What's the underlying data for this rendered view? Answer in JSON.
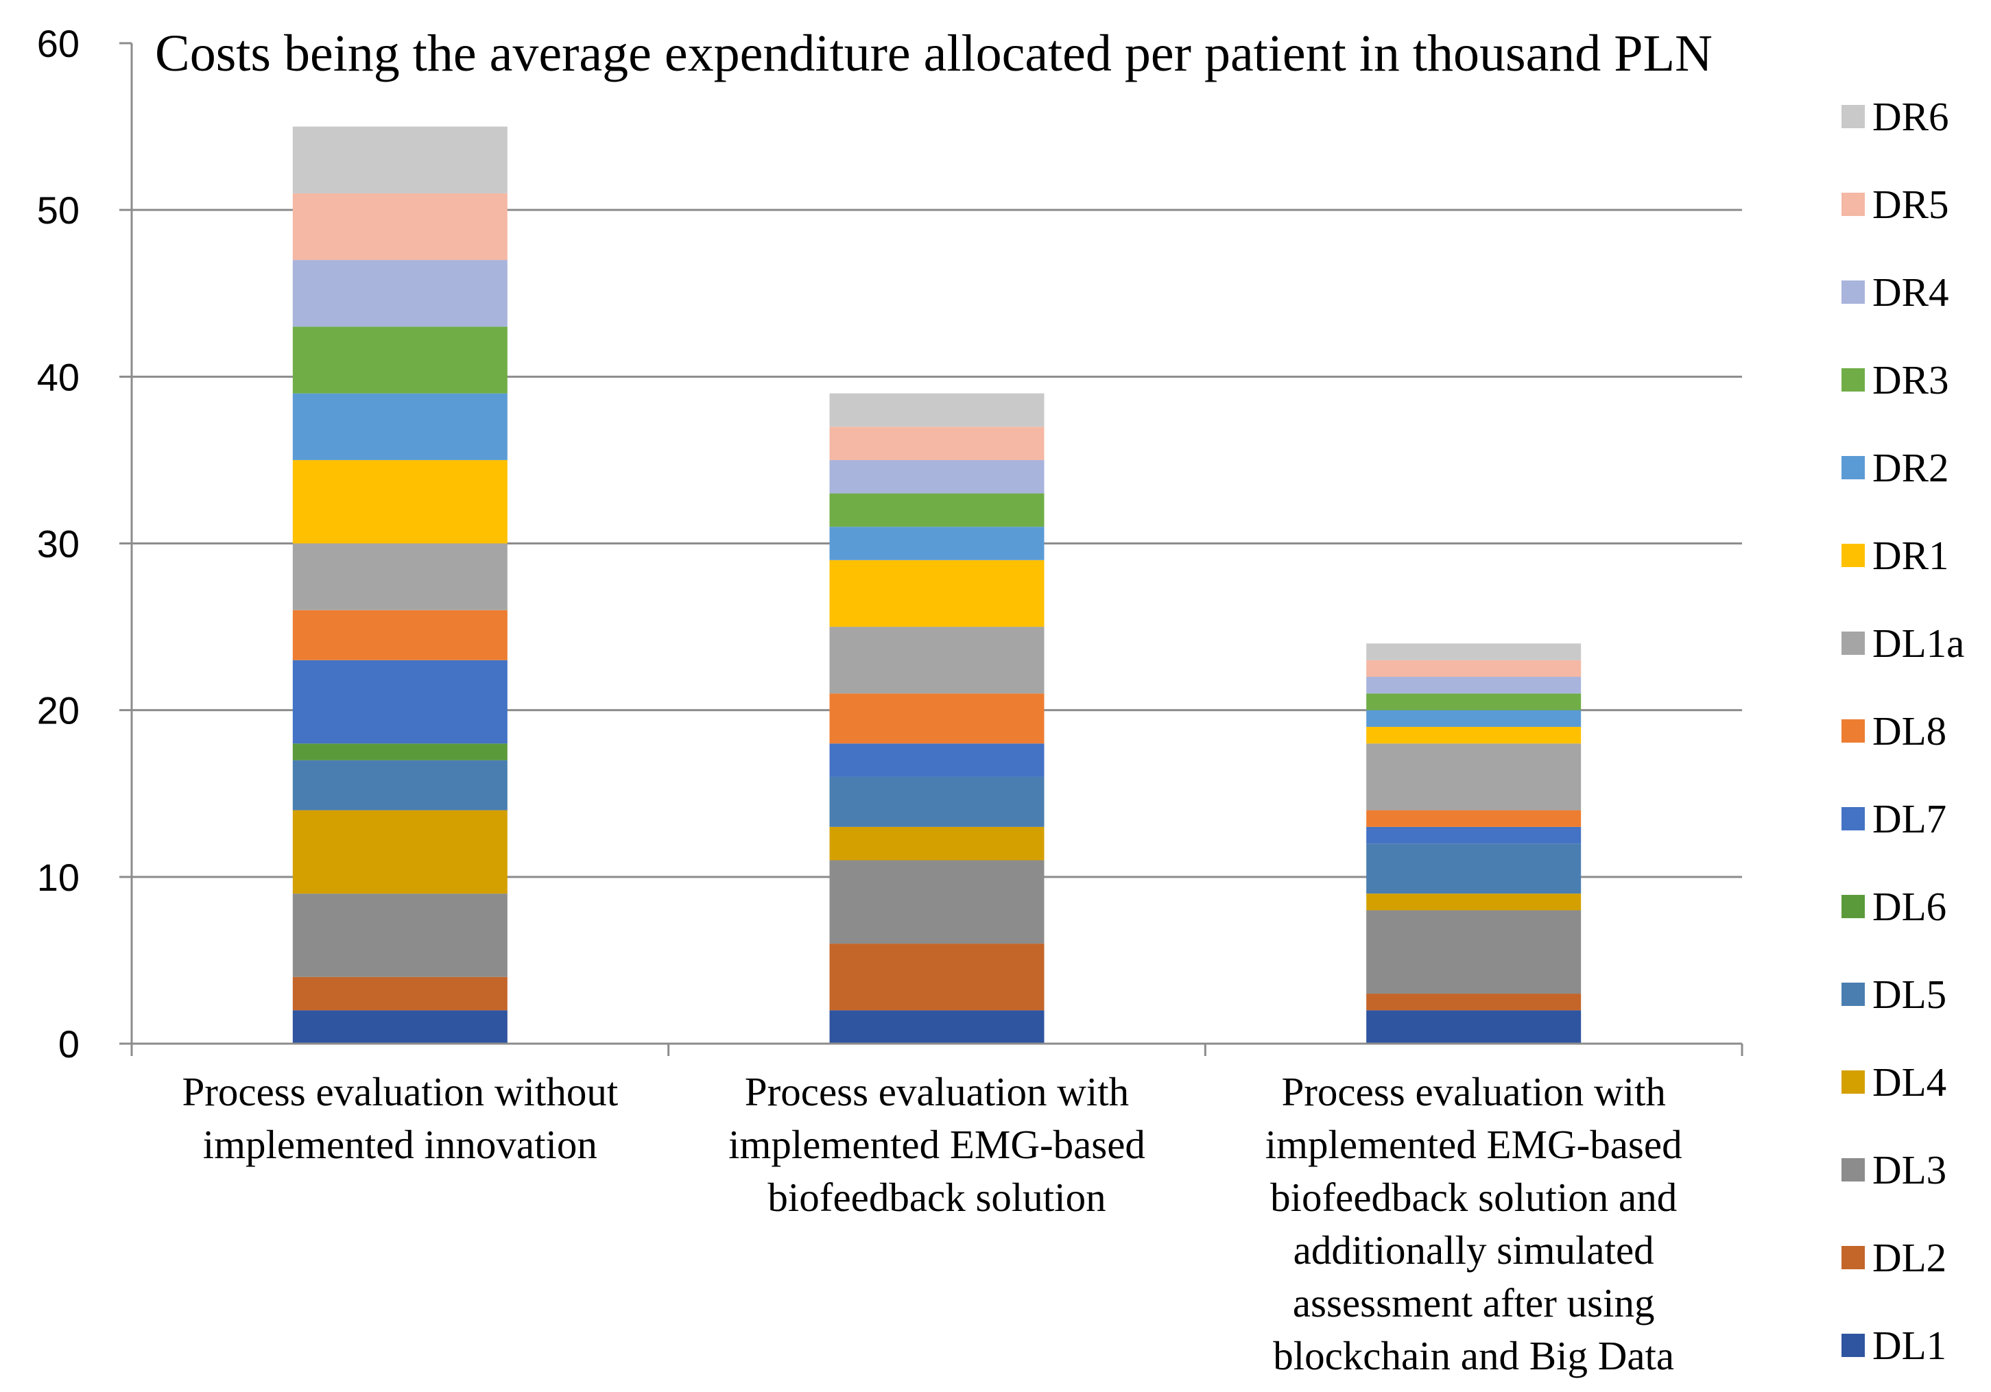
{
  "chart_data": {
    "type": "bar",
    "stacked": true,
    "title": "Costs being the average expenditure allocated per patient in thousand PLN",
    "xlabel": "",
    "ylabel": "",
    "ylim": [
      0,
      60
    ],
    "yticks": [
      0,
      10,
      20,
      30,
      40,
      50,
      60
    ],
    "grid": true,
    "legend_position": "right",
    "categories": [
      "Process evaluation without implemented innovation",
      "Process evaluation with implemented EMG-based biofeedback solution",
      "Process evaluation with implemented EMG-based biofeedback solution and additionally simulated assessment after using blockchain and Big Data"
    ],
    "category_label_lines": [
      [
        "Process evaluation without",
        "implemented innovation"
      ],
      [
        "Process evaluation with",
        "implemented EMG-based",
        "biofeedback solution"
      ],
      [
        "Process evaluation with",
        "implemented EMG-based",
        "biofeedback solution and",
        "additionally simulated",
        "assessment after using",
        "blockchain and Big Data"
      ]
    ],
    "series": [
      {
        "name": "DL1",
        "color": "#2F55A0",
        "values": [
          2,
          2,
          2
        ]
      },
      {
        "name": "DL2",
        "color": "#C4652A",
        "values": [
          2,
          4,
          1
        ]
      },
      {
        "name": "DL3",
        "color": "#8C8C8C",
        "values": [
          5,
          5,
          5
        ]
      },
      {
        "name": "DL4",
        "color": "#D4A000",
        "values": [
          5,
          2,
          1
        ]
      },
      {
        "name": "DL5",
        "color": "#4A7EB0",
        "values": [
          3,
          3,
          3
        ]
      },
      {
        "name": "DL6",
        "color": "#5B9A3A",
        "values": [
          1,
          0,
          0
        ]
      },
      {
        "name": "DL7",
        "color": "#4472C4",
        "values": [
          5,
          2,
          1
        ]
      },
      {
        "name": "DL8",
        "color": "#ED7D31",
        "values": [
          3,
          3,
          1
        ]
      },
      {
        "name": "DL1a",
        "color": "#A5A5A5",
        "values": [
          4,
          4,
          4
        ]
      },
      {
        "name": "DR1",
        "color": "#FFC000",
        "values": [
          5,
          4,
          1
        ]
      },
      {
        "name": "DR2",
        "color": "#5B9BD5",
        "values": [
          4,
          2,
          1
        ]
      },
      {
        "name": "DR3",
        "color": "#70AD47",
        "values": [
          4,
          2,
          1
        ]
      },
      {
        "name": "DR4",
        "color": "#A9B4DC",
        "values": [
          4,
          2,
          1
        ]
      },
      {
        "name": "DR5",
        "color": "#F4B8A4",
        "values": [
          4,
          2,
          1
        ]
      },
      {
        "name": "DR6",
        "color": "#C9C9C9",
        "values": [
          4,
          2,
          1
        ]
      }
    ]
  }
}
